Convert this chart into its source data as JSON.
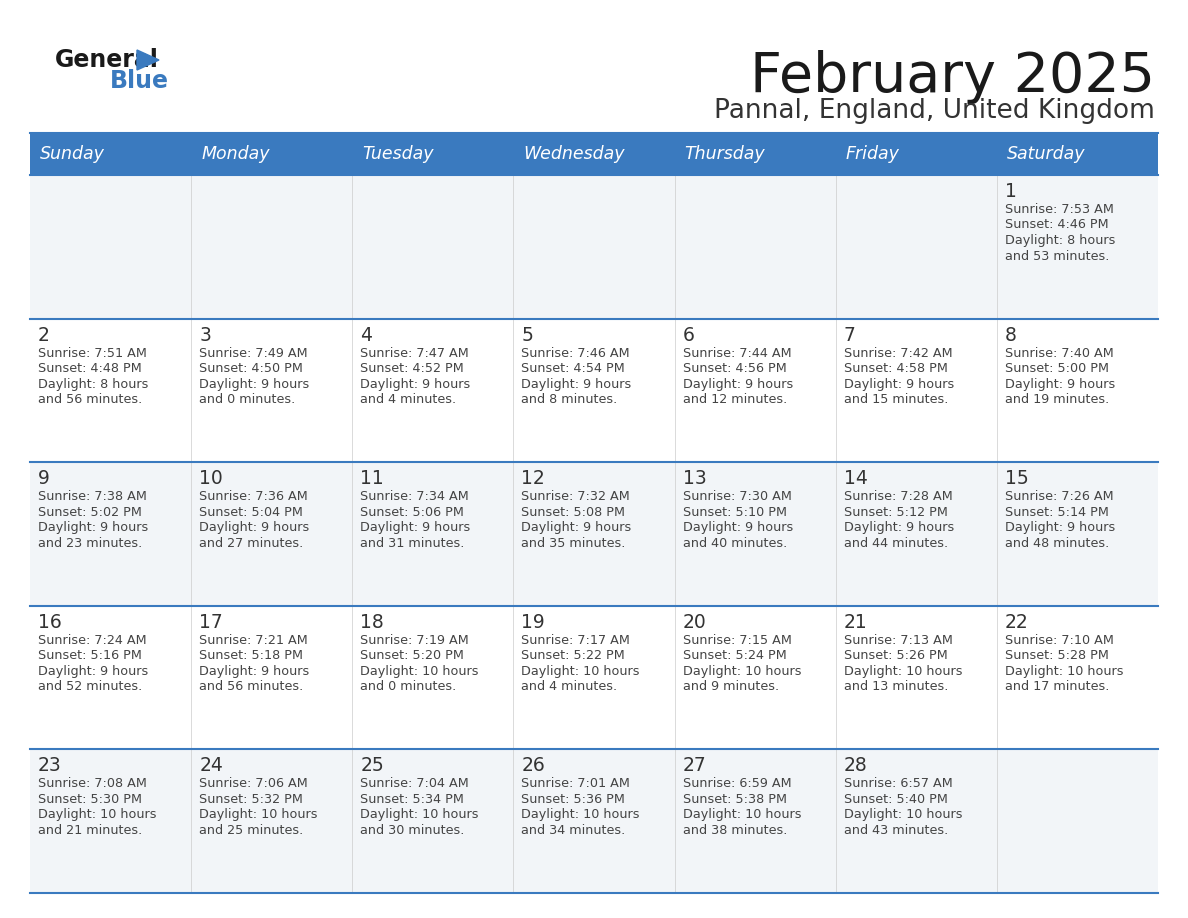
{
  "title": "February 2025",
  "subtitle": "Pannal, England, United Kingdom",
  "header_bg": "#3a7abf",
  "header_text": "#ffffff",
  "row_bg_odd": "#f2f5f8",
  "row_bg_even": "#ffffff",
  "text_color": "#444444",
  "day_number_color": "#333333",
  "separator_color": "#3a7abf",
  "days_of_week": [
    "Sunday",
    "Monday",
    "Tuesday",
    "Wednesday",
    "Thursday",
    "Friday",
    "Saturday"
  ],
  "weeks": [
    [
      {
        "day": null,
        "sunrise": null,
        "sunset": null,
        "daylight_line1": null,
        "daylight_line2": null
      },
      {
        "day": null,
        "sunrise": null,
        "sunset": null,
        "daylight_line1": null,
        "daylight_line2": null
      },
      {
        "day": null,
        "sunrise": null,
        "sunset": null,
        "daylight_line1": null,
        "daylight_line2": null
      },
      {
        "day": null,
        "sunrise": null,
        "sunset": null,
        "daylight_line1": null,
        "daylight_line2": null
      },
      {
        "day": null,
        "sunrise": null,
        "sunset": null,
        "daylight_line1": null,
        "daylight_line2": null
      },
      {
        "day": null,
        "sunrise": null,
        "sunset": null,
        "daylight_line1": null,
        "daylight_line2": null
      },
      {
        "day": 1,
        "sunrise": "Sunrise: 7:53 AM",
        "sunset": "Sunset: 4:46 PM",
        "daylight_line1": "Daylight: 8 hours",
        "daylight_line2": "and 53 minutes."
      }
    ],
    [
      {
        "day": 2,
        "sunrise": "Sunrise: 7:51 AM",
        "sunset": "Sunset: 4:48 PM",
        "daylight_line1": "Daylight: 8 hours",
        "daylight_line2": "and 56 minutes."
      },
      {
        "day": 3,
        "sunrise": "Sunrise: 7:49 AM",
        "sunset": "Sunset: 4:50 PM",
        "daylight_line1": "Daylight: 9 hours",
        "daylight_line2": "and 0 minutes."
      },
      {
        "day": 4,
        "sunrise": "Sunrise: 7:47 AM",
        "sunset": "Sunset: 4:52 PM",
        "daylight_line1": "Daylight: 9 hours",
        "daylight_line2": "and 4 minutes."
      },
      {
        "day": 5,
        "sunrise": "Sunrise: 7:46 AM",
        "sunset": "Sunset: 4:54 PM",
        "daylight_line1": "Daylight: 9 hours",
        "daylight_line2": "and 8 minutes."
      },
      {
        "day": 6,
        "sunrise": "Sunrise: 7:44 AM",
        "sunset": "Sunset: 4:56 PM",
        "daylight_line1": "Daylight: 9 hours",
        "daylight_line2": "and 12 minutes."
      },
      {
        "day": 7,
        "sunrise": "Sunrise: 7:42 AM",
        "sunset": "Sunset: 4:58 PM",
        "daylight_line1": "Daylight: 9 hours",
        "daylight_line2": "and 15 minutes."
      },
      {
        "day": 8,
        "sunrise": "Sunrise: 7:40 AM",
        "sunset": "Sunset: 5:00 PM",
        "daylight_line1": "Daylight: 9 hours",
        "daylight_line2": "and 19 minutes."
      }
    ],
    [
      {
        "day": 9,
        "sunrise": "Sunrise: 7:38 AM",
        "sunset": "Sunset: 5:02 PM",
        "daylight_line1": "Daylight: 9 hours",
        "daylight_line2": "and 23 minutes."
      },
      {
        "day": 10,
        "sunrise": "Sunrise: 7:36 AM",
        "sunset": "Sunset: 5:04 PM",
        "daylight_line1": "Daylight: 9 hours",
        "daylight_line2": "and 27 minutes."
      },
      {
        "day": 11,
        "sunrise": "Sunrise: 7:34 AM",
        "sunset": "Sunset: 5:06 PM",
        "daylight_line1": "Daylight: 9 hours",
        "daylight_line2": "and 31 minutes."
      },
      {
        "day": 12,
        "sunrise": "Sunrise: 7:32 AM",
        "sunset": "Sunset: 5:08 PM",
        "daylight_line1": "Daylight: 9 hours",
        "daylight_line2": "and 35 minutes."
      },
      {
        "day": 13,
        "sunrise": "Sunrise: 7:30 AM",
        "sunset": "Sunset: 5:10 PM",
        "daylight_line1": "Daylight: 9 hours",
        "daylight_line2": "and 40 minutes."
      },
      {
        "day": 14,
        "sunrise": "Sunrise: 7:28 AM",
        "sunset": "Sunset: 5:12 PM",
        "daylight_line1": "Daylight: 9 hours",
        "daylight_line2": "and 44 minutes."
      },
      {
        "day": 15,
        "sunrise": "Sunrise: 7:26 AM",
        "sunset": "Sunset: 5:14 PM",
        "daylight_line1": "Daylight: 9 hours",
        "daylight_line2": "and 48 minutes."
      }
    ],
    [
      {
        "day": 16,
        "sunrise": "Sunrise: 7:24 AM",
        "sunset": "Sunset: 5:16 PM",
        "daylight_line1": "Daylight: 9 hours",
        "daylight_line2": "and 52 minutes."
      },
      {
        "day": 17,
        "sunrise": "Sunrise: 7:21 AM",
        "sunset": "Sunset: 5:18 PM",
        "daylight_line1": "Daylight: 9 hours",
        "daylight_line2": "and 56 minutes."
      },
      {
        "day": 18,
        "sunrise": "Sunrise: 7:19 AM",
        "sunset": "Sunset: 5:20 PM",
        "daylight_line1": "Daylight: 10 hours",
        "daylight_line2": "and 0 minutes."
      },
      {
        "day": 19,
        "sunrise": "Sunrise: 7:17 AM",
        "sunset": "Sunset: 5:22 PM",
        "daylight_line1": "Daylight: 10 hours",
        "daylight_line2": "and 4 minutes."
      },
      {
        "day": 20,
        "sunrise": "Sunrise: 7:15 AM",
        "sunset": "Sunset: 5:24 PM",
        "daylight_line1": "Daylight: 10 hours",
        "daylight_line2": "and 9 minutes."
      },
      {
        "day": 21,
        "sunrise": "Sunrise: 7:13 AM",
        "sunset": "Sunset: 5:26 PM",
        "daylight_line1": "Daylight: 10 hours",
        "daylight_line2": "and 13 minutes."
      },
      {
        "day": 22,
        "sunrise": "Sunrise: 7:10 AM",
        "sunset": "Sunset: 5:28 PM",
        "daylight_line1": "Daylight: 10 hours",
        "daylight_line2": "and 17 minutes."
      }
    ],
    [
      {
        "day": 23,
        "sunrise": "Sunrise: 7:08 AM",
        "sunset": "Sunset: 5:30 PM",
        "daylight_line1": "Daylight: 10 hours",
        "daylight_line2": "and 21 minutes."
      },
      {
        "day": 24,
        "sunrise": "Sunrise: 7:06 AM",
        "sunset": "Sunset: 5:32 PM",
        "daylight_line1": "Daylight: 10 hours",
        "daylight_line2": "and 25 minutes."
      },
      {
        "day": 25,
        "sunrise": "Sunrise: 7:04 AM",
        "sunset": "Sunset: 5:34 PM",
        "daylight_line1": "Daylight: 10 hours",
        "daylight_line2": "and 30 minutes."
      },
      {
        "day": 26,
        "sunrise": "Sunrise: 7:01 AM",
        "sunset": "Sunset: 5:36 PM",
        "daylight_line1": "Daylight: 10 hours",
        "daylight_line2": "and 34 minutes."
      },
      {
        "day": 27,
        "sunrise": "Sunrise: 6:59 AM",
        "sunset": "Sunset: 5:38 PM",
        "daylight_line1": "Daylight: 10 hours",
        "daylight_line2": "and 38 minutes."
      },
      {
        "day": 28,
        "sunrise": "Sunrise: 6:57 AM",
        "sunset": "Sunset: 5:40 PM",
        "daylight_line1": "Daylight: 10 hours",
        "daylight_line2": "and 43 minutes."
      },
      {
        "day": null,
        "sunrise": null,
        "sunset": null,
        "daylight_line1": null,
        "daylight_line2": null
      }
    ]
  ]
}
